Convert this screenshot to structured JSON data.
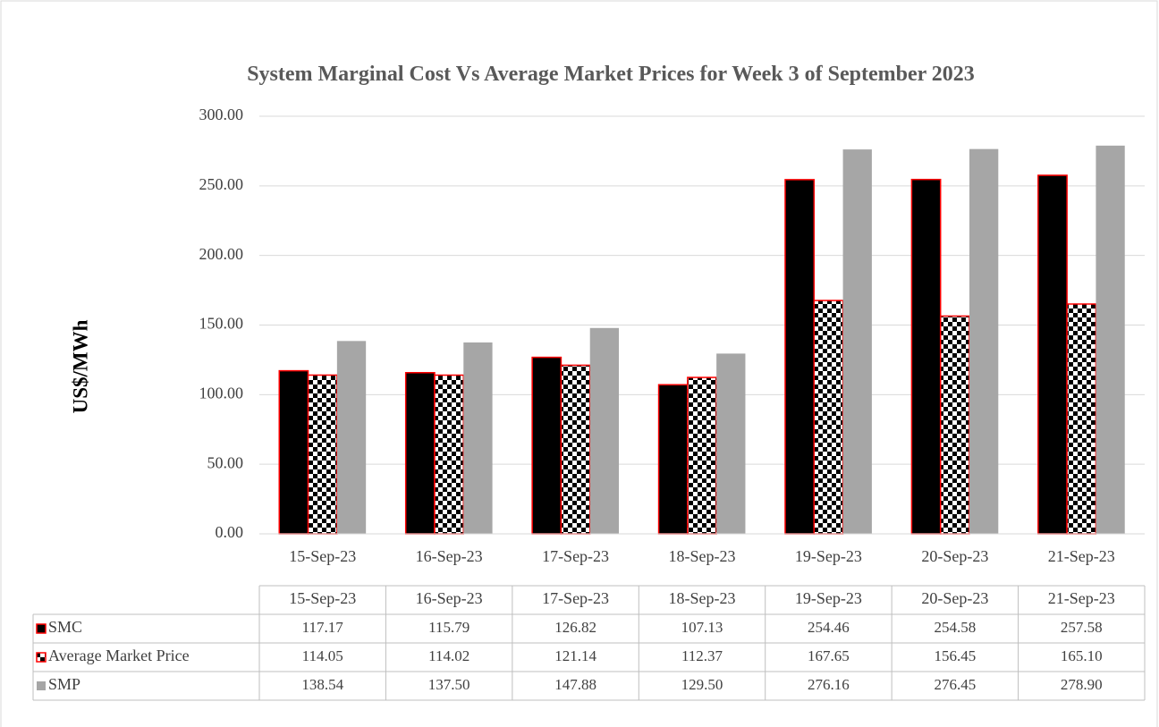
{
  "chart_data": {
    "type": "bar",
    "title": "System Marginal Cost Vs Average Market Prices for Week 3 of September 2023",
    "y_label": "US$/MWh",
    "categories": [
      "15-Sep-23",
      "16-Sep-23",
      "17-Sep-23",
      "18-Sep-23",
      "19-Sep-23",
      "20-Sep-23",
      "21-Sep-23"
    ],
    "series": [
      {
        "name": "SMC",
        "color": "#000000",
        "edgecolor": "#ff0000",
        "values": [
          117.17,
          115.79,
          126.82,
          107.13,
          254.46,
          254.58,
          257.58
        ],
        "value_labels": [
          "117.17",
          "115.79",
          "126.82",
          "107.13",
          "254.46",
          "254.58",
          "257.58"
        ]
      },
      {
        "name": "Average Market Price",
        "color": "#000000",
        "pattern": "checkerboard",
        "edgecolor": "#ff0000",
        "values": [
          114.05,
          114.02,
          121.14,
          112.37,
          167.65,
          156.45,
          165.1
        ],
        "value_labels": [
          "114.05",
          "114.02",
          "121.14",
          "112.37",
          "167.65",
          "156.45",
          "165.10"
        ]
      },
      {
        "name": "SMP",
        "color": "#a6a6a6",
        "values": [
          138.54,
          137.5,
          147.88,
          129.5,
          276.16,
          276.45,
          278.9
        ],
        "value_labels": [
          "138.54",
          "137.50",
          "147.88",
          "129.50",
          "276.16",
          "276.45",
          "278.90"
        ]
      }
    ],
    "ylim": [
      0,
      300
    ],
    "yticks": [
      {
        "value": 0,
        "label": "0.00"
      },
      {
        "value": 50,
        "label": "50.00"
      },
      {
        "value": 100,
        "label": "100.00"
      },
      {
        "value": 150,
        "label": "150.00"
      },
      {
        "value": 200,
        "label": "200.00"
      },
      {
        "value": 250,
        "label": "250.00"
      },
      {
        "value": 300,
        "label": "300.00"
      }
    ],
    "grid": true,
    "data_table": true
  }
}
